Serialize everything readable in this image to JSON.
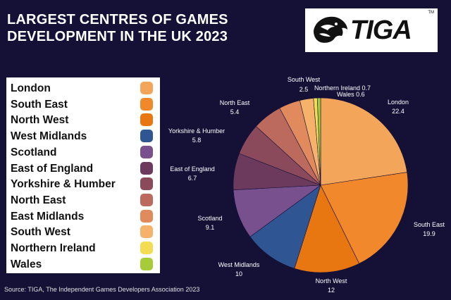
{
  "header": {
    "title_line1": "LARGEST CENTRES OF GAMES",
    "title_line2": "DEVELOPMENT IN THE UK 2023"
  },
  "logo": {
    "text": "TIGA",
    "tm": "TM"
  },
  "source": "Source: TIGA, The Independent Games Developers Association 2023",
  "colors": {
    "background": "#141036",
    "London": "#f3a659",
    "South East": "#f1882c",
    "North West": "#e87712",
    "West Midlands": "#2f5593",
    "Scotland": "#77508d",
    "East of England": "#6b3a5c",
    "Yorkshire & Humber": "#8a4a5c",
    "North East": "#bd6a5e",
    "East Midlands": "#e08a5e",
    "South West": "#f6b26b",
    "Northern Ireland": "#f4dd55",
    "Wales": "#a7cc3a"
  },
  "chart_data": {
    "type": "pie",
    "title": "LARGEST CENTRES OF GAMES DEVELOPMENT IN THE UK 2023",
    "categories": [
      "London",
      "South East",
      "North West",
      "West Midlands",
      "Scotland",
      "East of England",
      "Yorkshire & Humber",
      "North East",
      "East Midlands",
      "South West",
      "Northern Ireland",
      "Wales"
    ],
    "values": [
      22.4,
      19.9,
      12,
      10,
      9.1,
      6.7,
      5.8,
      5.4,
      null,
      2.5,
      0.7,
      0.6
    ],
    "slice_values": [
      22.4,
      19.9,
      12,
      10,
      9.1,
      6.7,
      5.8,
      5.4,
      3.9,
      2.5,
      0.7,
      0.6
    ],
    "labels": [
      {
        "name": "London",
        "value": "22.4"
      },
      {
        "name": "South East",
        "value": "19.9"
      },
      {
        "name": "North West",
        "value": "12"
      },
      {
        "name": "West Midlands",
        "value": "10"
      },
      {
        "name": "Scotland",
        "value": "9.1"
      },
      {
        "name": "East of England",
        "value": "6.7"
      },
      {
        "name": "Yorkshire & Humber",
        "value": "5.8"
      },
      {
        "name": "North East",
        "value": "5.4"
      },
      {
        "name": "South West",
        "value": "2.5"
      },
      {
        "name": "Northern Ireland",
        "value": "0.7"
      },
      {
        "name": "Wales",
        "value": "0.6"
      }
    ],
    "legend_position": "left"
  }
}
